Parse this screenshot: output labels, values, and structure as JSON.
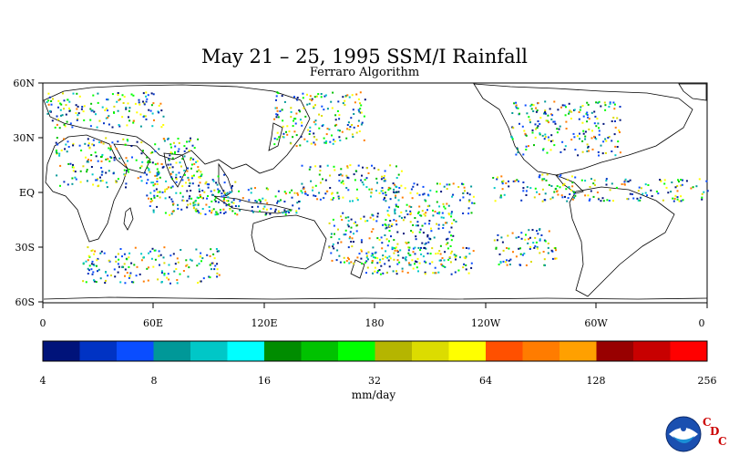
{
  "title": "May 21 – 25, 1995 SSM/I Rainfall",
  "subtitle": "Ferraro Algorithm",
  "lat_labels": [
    "60N",
    "30N",
    "EQ",
    "30S",
    "60S"
  ],
  "lon_labels": [
    "0",
    "60E",
    "120E",
    "180",
    "120W",
    "60W",
    "0"
  ],
  "colorbar": {
    "colors": [
      "#00137a",
      "#0033c4",
      "#0a4dff",
      "#009898",
      "#00c7c7",
      "#00ffff",
      "#008c00",
      "#00c200",
      "#00ff00",
      "#b5b500",
      "#dcdc00",
      "#ffff00",
      "#ff5000",
      "#ff7c00",
      "#ffa000",
      "#980000",
      "#c80000",
      "#ff0000"
    ],
    "ticks": [
      "4",
      "8",
      "16",
      "32",
      "64",
      "128",
      "256"
    ],
    "unit": "mm/day"
  },
  "logo": {
    "icon": "noaa-logo",
    "letters": [
      "C",
      "D",
      "C"
    ]
  }
}
